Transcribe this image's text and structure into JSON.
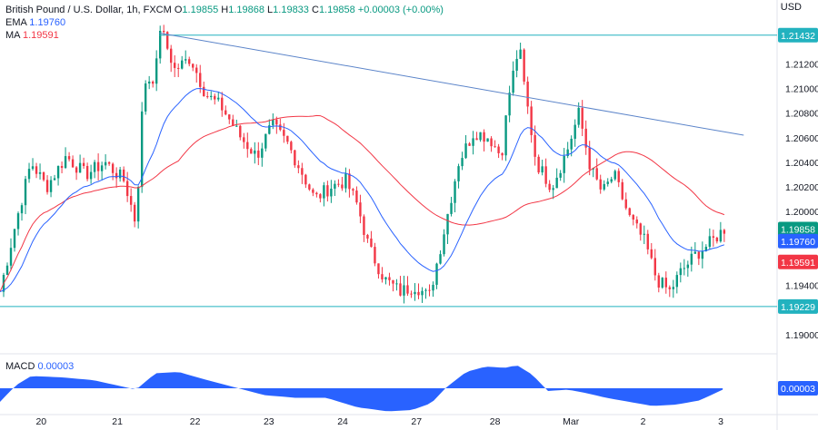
{
  "legend": {
    "symbol": "British Pound / U.S. Dollar, 1h, FXCM",
    "o_label": "O",
    "o": "1.19855",
    "h_label": "H",
    "h": "1.19868",
    "l_label": "L",
    "l": "1.19833",
    "c_label": "C",
    "c": "1.19858",
    "change": "+0.00003 (+0.00%)",
    "ema_label": "EMA",
    "ema": "1.19760",
    "ma_label": "MA",
    "ma": "1.19591",
    "macd_label": "MACD",
    "macd": "0.00003",
    "currency": "USD"
  },
  "colors": {
    "up": "#089981",
    "down": "#f23645",
    "ema": "#2962ff",
    "ma": "#f23645",
    "level": "#22b2bf",
    "trend": "#5b84c9",
    "macd": "#2962ff"
  },
  "chart_data": {
    "type": "candlestick",
    "title": "British Pound / U.S. Dollar, 1h, FXCM",
    "ylabel": "USD",
    "ylim": [
      1.1886,
      1.216
    ],
    "y_ticks": [
      "1.21200",
      "1.21000",
      "1.20800",
      "1.20600",
      "1.20400",
      "1.20200",
      "1.20000",
      "1.19400",
      "1.19000"
    ],
    "x_ticks": [
      "20",
      "21",
      "22",
      "23",
      "24",
      "27",
      "28",
      "Mar",
      "2",
      "3"
    ],
    "price_tags": [
      {
        "label": "1.21432",
        "value": 1.21432,
        "color": "#22b2bf"
      },
      {
        "label": "1.19858",
        "value": 1.19858,
        "color": "#089981"
      },
      {
        "label": "1.19760",
        "value": 1.1976,
        "color": "#2962ff"
      },
      {
        "label": "1.19591",
        "value": 1.19591,
        "color": "#f23645"
      },
      {
        "label": "1.19229",
        "value": 1.19229,
        "color": "#22b2bf"
      }
    ],
    "horizontal_levels": [
      1.21432,
      1.19229
    ],
    "trendline": [
      [
        0.205,
        1.2145
      ],
      [
        0.957,
        1.2062
      ]
    ],
    "anchors": [
      [
        0.0,
        1.1935
      ],
      [
        0.02,
        1.199
      ],
      [
        0.04,
        1.204
      ],
      [
        0.06,
        1.202
      ],
      [
        0.085,
        1.2045
      ],
      [
        0.11,
        1.203
      ],
      [
        0.135,
        1.204
      ],
      [
        0.16,
        1.2025
      ],
      [
        0.175,
        1.199
      ],
      [
        0.185,
        1.2105
      ],
      [
        0.2,
        1.211
      ],
      [
        0.206,
        1.215
      ],
      [
        0.225,
        1.2115
      ],
      [
        0.245,
        1.2125
      ],
      [
        0.265,
        1.2095
      ],
      [
        0.285,
        1.2085
      ],
      [
        0.31,
        1.206
      ],
      [
        0.33,
        1.2045
      ],
      [
        0.35,
        1.207
      ],
      [
        0.37,
        1.2055
      ],
      [
        0.39,
        1.203
      ],
      [
        0.405,
        1.201
      ],
      [
        0.425,
        1.202
      ],
      [
        0.445,
        1.2025
      ],
      [
        0.46,
        1.2005
      ],
      [
        0.475,
        1.197
      ],
      [
        0.495,
        1.1945
      ],
      [
        0.515,
        1.1935
      ],
      [
        0.535,
        1.194
      ],
      [
        0.552,
        1.193
      ],
      [
        0.57,
        1.198
      ],
      [
        0.59,
        1.204
      ],
      [
        0.61,
        1.2065
      ],
      [
        0.63,
        1.206
      ],
      [
        0.645,
        1.2045
      ],
      [
        0.655,
        1.2095
      ],
      [
        0.668,
        1.2135
      ],
      [
        0.675,
        1.21
      ],
      [
        0.69,
        1.204
      ],
      [
        0.71,
        1.202
      ],
      [
        0.73,
        1.205
      ],
      [
        0.745,
        1.208
      ],
      [
        0.76,
        1.2035
      ],
      [
        0.775,
        1.2015
      ],
      [
        0.79,
        1.203
      ],
      [
        0.81,
        1.1995
      ],
      [
        0.83,
        1.1975
      ],
      [
        0.845,
        1.1945
      ],
      [
        0.862,
        1.1935
      ],
      [
        0.875,
        1.195
      ],
      [
        0.895,
        1.1965
      ],
      [
        0.915,
        1.1975
      ],
      [
        0.932,
        1.1986
      ]
    ],
    "macd_anchors": [
      [
        0.0,
        -0.5
      ],
      [
        0.02,
        0.1
      ],
      [
        0.04,
        0.45
      ],
      [
        0.08,
        0.4
      ],
      [
        0.12,
        0.3
      ],
      [
        0.16,
        0.05
      ],
      [
        0.175,
        -0.05
      ],
      [
        0.2,
        0.55
      ],
      [
        0.23,
        0.6
      ],
      [
        0.26,
        0.35
      ],
      [
        0.3,
        0.05
      ],
      [
        0.34,
        -0.25
      ],
      [
        0.38,
        -0.35
      ],
      [
        0.42,
        -0.35
      ],
      [
        0.46,
        -0.7
      ],
      [
        0.5,
        -0.85
      ],
      [
        0.53,
        -0.8
      ],
      [
        0.555,
        -0.55
      ],
      [
        0.575,
        0.05
      ],
      [
        0.6,
        0.6
      ],
      [
        0.625,
        0.8
      ],
      [
        0.65,
        0.75
      ],
      [
        0.665,
        0.85
      ],
      [
        0.685,
        0.5
      ],
      [
        0.705,
        -0.1
      ],
      [
        0.73,
        -0.05
      ],
      [
        0.75,
        -0.15
      ],
      [
        0.78,
        -0.35
      ],
      [
        0.81,
        -0.5
      ],
      [
        0.84,
        -0.65
      ],
      [
        0.87,
        -0.6
      ],
      [
        0.9,
        -0.45
      ],
      [
        0.93,
        -0.05
      ]
    ]
  }
}
